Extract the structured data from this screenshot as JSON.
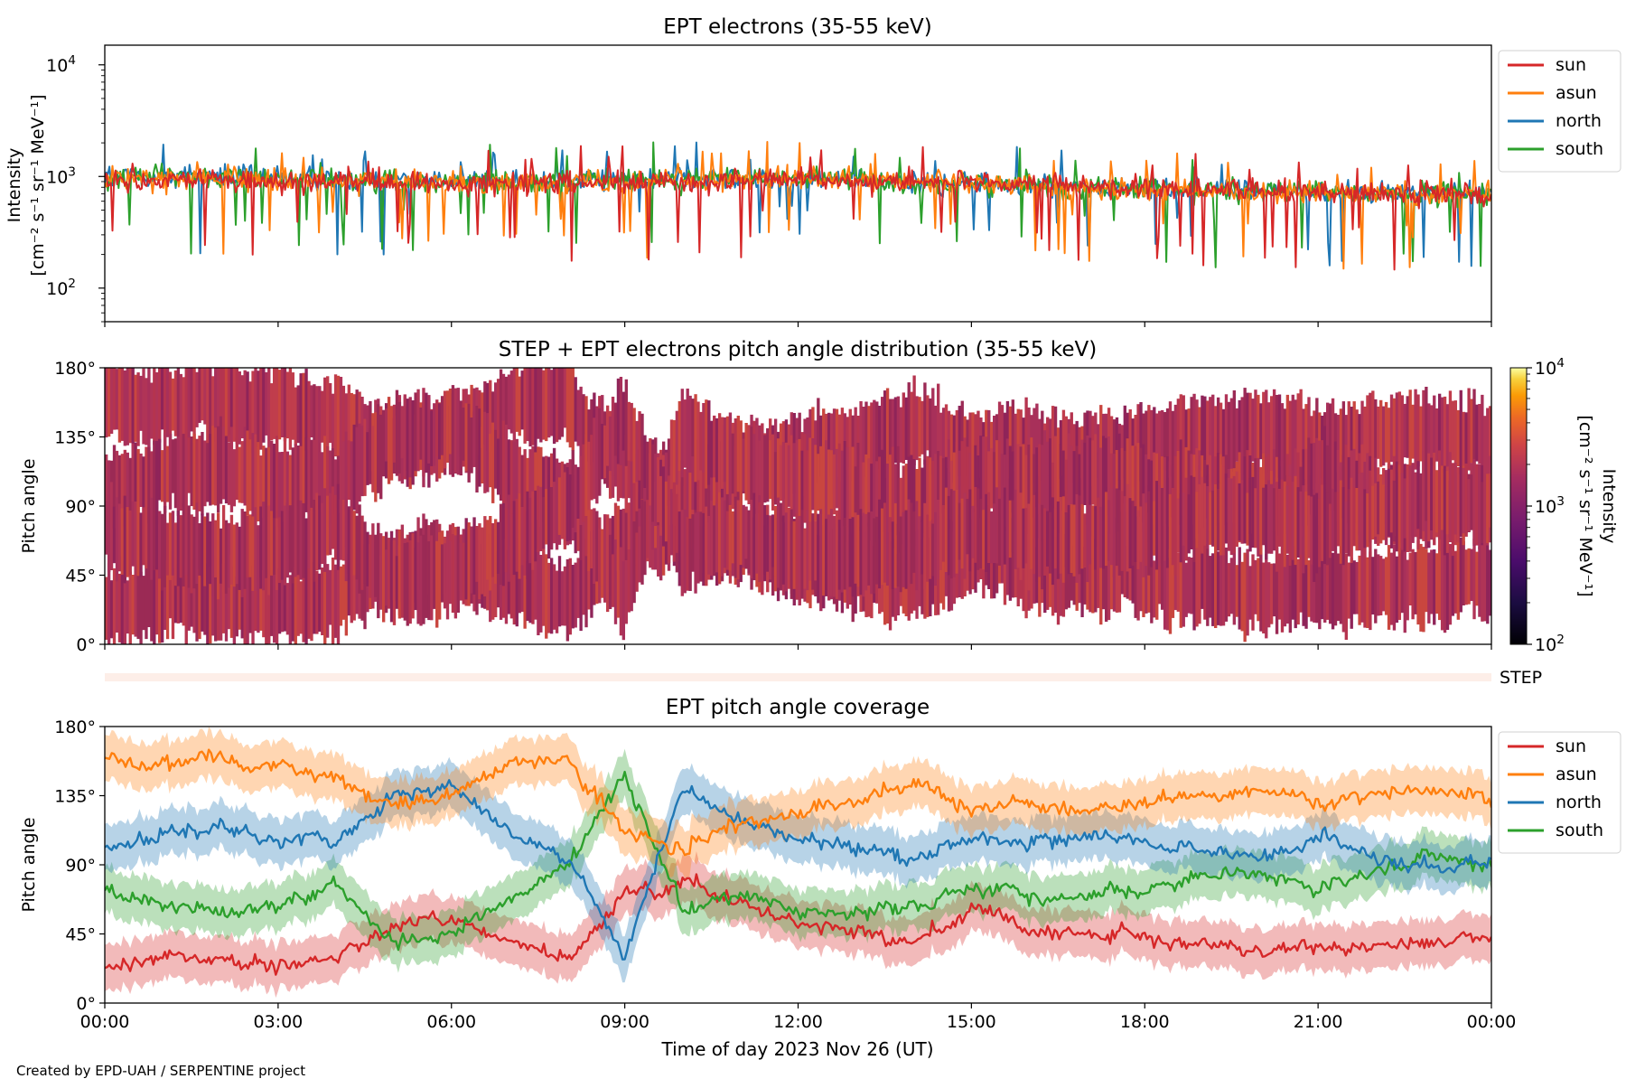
{
  "figure": {
    "credit": "Created by EPD-UAH / SERPENTINE project",
    "xlabel": "Time of day 2023 Nov 26 (UT)",
    "xticks": [
      "00:00",
      "03:00",
      "06:00",
      "09:00",
      "12:00",
      "15:00",
      "18:00",
      "21:00",
      "00:00"
    ]
  },
  "panel1": {
    "title": "EPT electrons (35-55 keV)",
    "ylabel_line1": "Intensity",
    "ylabel_line2": "[cm⁻² s⁻¹ sr⁻¹ MeV⁻¹]",
    "yticks": [
      {
        "base": "10",
        "exp": "4"
      },
      {
        "base": "10",
        "exp": "3"
      },
      {
        "base": "10",
        "exp": "2"
      }
    ],
    "legend": [
      "sun",
      "asun",
      "north",
      "south"
    ]
  },
  "panel2": {
    "title": "STEP + EPT electrons pitch angle distribution (35-55 keV)",
    "ylabel": "Pitch angle",
    "yticks": [
      "180°",
      "135°",
      "90°",
      "45°",
      "0°"
    ],
    "colorbar_label_line1": "Intensity",
    "colorbar_label_line2": "[cm⁻² s⁻¹ sr⁻¹ MeV⁻¹]",
    "colorbar_ticks": [
      {
        "base": "10",
        "exp": "4"
      },
      {
        "base": "10",
        "exp": "3"
      },
      {
        "base": "10",
        "exp": "2"
      }
    ],
    "step_label": "STEP"
  },
  "panel3": {
    "title": "EPT pitch angle coverage",
    "ylabel": "Pitch angle",
    "yticks": [
      "180°",
      "135°",
      "90°",
      "45°",
      "0°"
    ],
    "legend": [
      "sun",
      "asun",
      "north",
      "south"
    ]
  },
  "colors": {
    "sun": "#d62728",
    "asun": "#ff7f0e",
    "north": "#1f77b4",
    "south": "#2ca02c",
    "pad_fill": "#b5304e"
  },
  "chart_data": [
    {
      "type": "line",
      "title": "EPT electrons (35-55 keV)",
      "xlabel": "",
      "ylabel": "Intensity [cm⁻² s⁻¹ sr⁻¹ MeV⁻¹]",
      "yscale": "log",
      "ylim": [
        50,
        15000
      ],
      "xlim": [
        "00:00",
        "24:00"
      ],
      "grid": false,
      "legend_position": "outside-right",
      "x": [
        0,
        2,
        4,
        6,
        8,
        10,
        12,
        14,
        16,
        18,
        20,
        22,
        24
      ],
      "series": [
        {
          "name": "sun",
          "values": [
            900,
            950,
            900,
            850,
            880,
            900,
            950,
            900,
            850,
            800,
            760,
            720,
            700
          ]
        },
        {
          "name": "asun",
          "values": [
            950,
            980,
            920,
            880,
            900,
            920,
            950,
            900,
            830,
            780,
            740,
            700,
            700
          ]
        },
        {
          "name": "north",
          "values": [
            1000,
            1000,
            950,
            900,
            920,
            950,
            980,
            900,
            830,
            780,
            750,
            720,
            720
          ]
        },
        {
          "name": "south",
          "values": [
            980,
            1000,
            950,
            900,
            920,
            950,
            970,
            880,
            820,
            770,
            740,
            700,
            700
          ]
        }
      ]
    },
    {
      "type": "heatmap",
      "title": "STEP + EPT electrons pitch angle distribution (35-55 keV)",
      "ylabel": "Pitch angle",
      "ylim": [
        0,
        180
      ],
      "xlim": [
        "00:00",
        "24:00"
      ],
      "colorbar": {
        "scale": "log",
        "range": [
          100,
          10000
        ],
        "label": "Intensity [cm⁻² s⁻¹ sr⁻¹ MeV⁻¹]"
      },
      "typical_value": 800
    },
    {
      "type": "line",
      "title": "EPT pitch angle coverage",
      "xlabel": "Time of day 2023 Nov 26 (UT)",
      "ylabel": "Pitch angle",
      "ylim": [
        0,
        180
      ],
      "xlim": [
        "00:00",
        "24:00"
      ],
      "grid": false,
      "legend_position": "outside-right",
      "band_halfwidth_deg": 15,
      "x": [
        0,
        1,
        2,
        3,
        4,
        5,
        6,
        7,
        8,
        9,
        10,
        11,
        12,
        13,
        14,
        15,
        16,
        17,
        18,
        19,
        20,
        21,
        22,
        23,
        24
      ],
      "series": [
        {
          "name": "sun",
          "values": [
            20,
            30,
            28,
            25,
            30,
            50,
            55,
            40,
            25,
            70,
            80,
            65,
            55,
            45,
            40,
            60,
            50,
            45,
            45,
            40,
            35,
            40,
            35,
            40,
            45
          ]
        },
        {
          "name": "asun",
          "values": [
            160,
            155,
            160,
            155,
            145,
            130,
            135,
            155,
            160,
            110,
            100,
            115,
            125,
            135,
            140,
            125,
            130,
            125,
            130,
            135,
            140,
            130,
            135,
            140,
            130
          ]
        },
        {
          "name": "north",
          "values": [
            100,
            110,
            115,
            110,
            105,
            135,
            140,
            110,
            95,
            30,
            140,
            120,
            110,
            100,
            95,
            110,
            105,
            110,
            105,
            100,
            95,
            110,
            95,
            85,
            90
          ]
        },
        {
          "name": "south",
          "values": [
            75,
            65,
            60,
            65,
            75,
            40,
            45,
            70,
            90,
            150,
            60,
            70,
            65,
            55,
            60,
            75,
            70,
            70,
            75,
            80,
            85,
            75,
            85,
            95,
            90
          ]
        }
      ]
    }
  ]
}
